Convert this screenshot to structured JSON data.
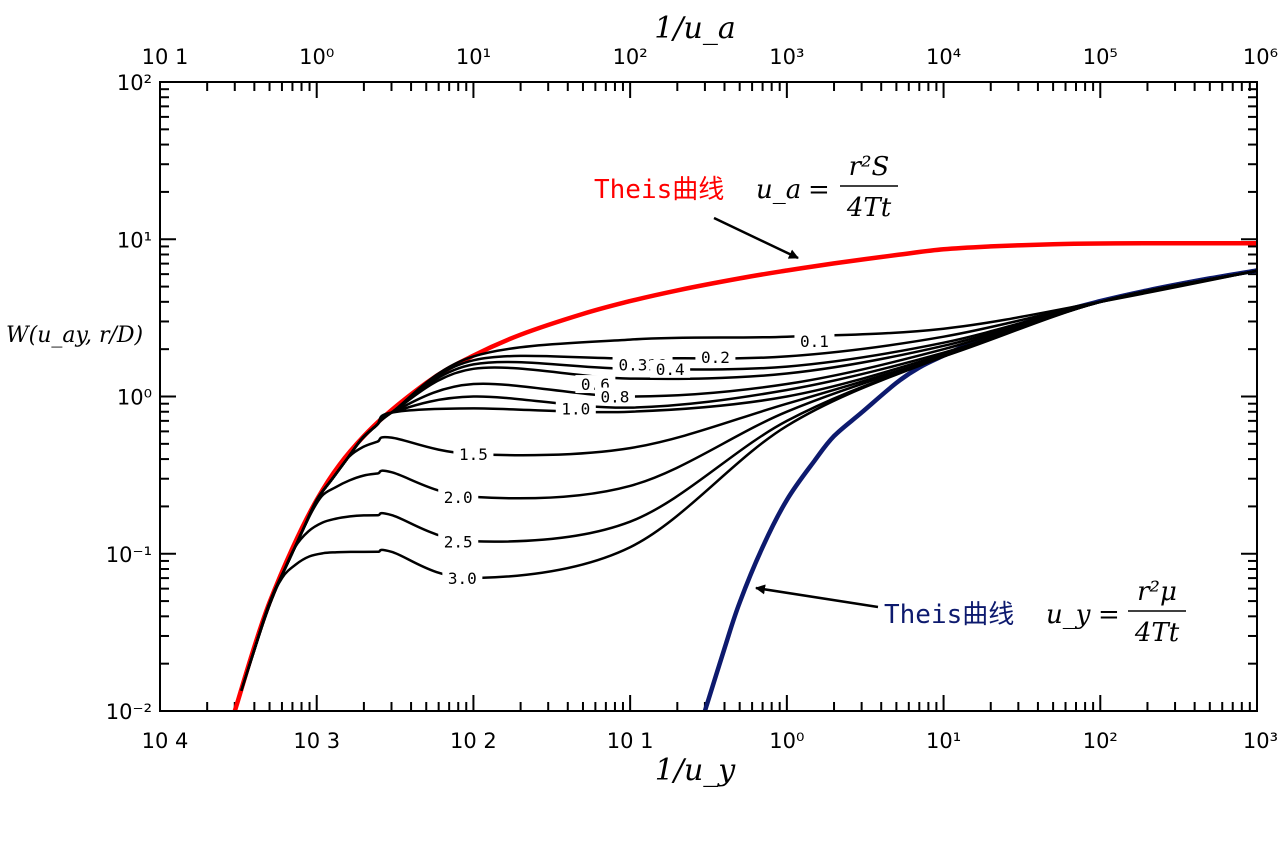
{
  "chart_data": {
    "type": "line",
    "log_x": true,
    "log_y": true,
    "grid": false,
    "title": "",
    "ylabel": "W(u_ay, r/D)",
    "bottom_axis": {
      "label": "1/u_y",
      "range": [
        0.0001,
        1000
      ],
      "tick_labels": [
        "10 4",
        "10 3",
        "10 2",
        "10 1",
        "10⁰",
        "10¹",
        "10²",
        "10³"
      ]
    },
    "top_axis": {
      "label": "1/u_a",
      "range": [
        0.1,
        1000000
      ],
      "tick_labels": [
        "10 1",
        "10⁰",
        "10¹",
        "10²",
        "10³",
        "10⁴",
        "10⁵",
        "10⁶"
      ]
    },
    "left_axis": {
      "range": [
        0.01,
        100
      ],
      "tick_labels": [
        "10⁻²",
        "10⁻¹",
        "10⁰",
        "10¹",
        "10²"
      ]
    },
    "series": [
      {
        "name": "Theis曲线 u_a = r²S/4Tt",
        "color": "#ff0000",
        "x": [
          0.0003,
          0.0005,
          0.001,
          0.002,
          0.005,
          0.01,
          0.02,
          0.05,
          0.1,
          0.2,
          0.5,
          1,
          2,
          5,
          10,
          20,
          50,
          100,
          200,
          500,
          1000
        ],
        "y": [
          0.01,
          0.049,
          0.22,
          0.56,
          1.22,
          1.82,
          2.47,
          3.35,
          4.04,
          4.73,
          5.64,
          6.33,
          7.02,
          7.94,
          8.63,
          9.0,
          9.3,
          9.4,
          9.42,
          9.42,
          9.42
        ]
      },
      {
        "name": "Theis曲线 u_y = r²μ/4Tt",
        "color": "#0d1a6e",
        "x": [
          0.3,
          0.4,
          0.5,
          0.7,
          1,
          1.5,
          2,
          3,
          5,
          7,
          10,
          20,
          50,
          100,
          200,
          500,
          1000
        ],
        "y": [
          0.01,
          0.025,
          0.049,
          0.11,
          0.22,
          0.39,
          0.56,
          0.79,
          1.22,
          1.53,
          1.82,
          2.47,
          3.35,
          4.04,
          4.73,
          5.64,
          6.33
        ]
      },
      {
        "name": "0.1",
        "color": "#000000",
        "x": [
          0.01,
          0.1,
          1,
          10,
          100,
          1000
        ],
        "y": [
          1.8,
          2.3,
          2.4,
          2.7,
          4.0,
          6.3
        ]
      },
      {
        "name": "0.2",
        "color": "#000000",
        "x": [
          0.01,
          0.1,
          1,
          10,
          100,
          1000
        ],
        "y": [
          1.7,
          1.75,
          1.8,
          2.4,
          4.0,
          6.3
        ]
      },
      {
        "name": "0.316",
        "color": "#000000",
        "x": [
          0.01,
          0.1,
          1,
          10,
          100,
          1000
        ],
        "y": [
          1.6,
          1.5,
          1.55,
          2.2,
          4.0,
          6.3
        ]
      },
      {
        "name": "0.4",
        "color": "#000000",
        "x": [
          0.01,
          0.1,
          1,
          10,
          100,
          1000
        ],
        "y": [
          1.5,
          1.3,
          1.4,
          2.1,
          4.0,
          6.3
        ]
      },
      {
        "name": "0.6",
        "color": "#000000",
        "x": [
          0.01,
          0.1,
          1,
          10,
          100,
          1000
        ],
        "y": [
          1.2,
          1.0,
          1.2,
          2.0,
          4.0,
          6.3
        ]
      },
      {
        "name": "0.8",
        "color": "#000000",
        "x": [
          0.01,
          0.1,
          1,
          10,
          100,
          1000
        ],
        "y": [
          1.0,
          0.85,
          1.1,
          1.9,
          4.0,
          6.3
        ]
      },
      {
        "name": "1.0",
        "color": "#000000",
        "x": [
          0.01,
          0.1,
          1,
          10,
          100,
          1000
        ],
        "y": [
          0.84,
          0.8,
          1.0,
          1.85,
          4.0,
          6.3
        ]
      },
      {
        "name": "1.5",
        "color": "#000000",
        "x": [
          0.01,
          0.1,
          1,
          10,
          100,
          1000
        ],
        "y": [
          0.43,
          0.47,
          0.9,
          1.8,
          4.0,
          6.3
        ]
      },
      {
        "name": "2.0",
        "color": "#000000",
        "x": [
          0.01,
          0.1,
          1,
          10,
          100,
          1000
        ],
        "y": [
          0.23,
          0.27,
          0.8,
          1.8,
          4.0,
          6.3
        ]
      },
      {
        "name": "2.5",
        "color": "#000000",
        "x": [
          0.01,
          0.1,
          1,
          10,
          100,
          1000
        ],
        "y": [
          0.12,
          0.16,
          0.7,
          1.8,
          4.0,
          6.3
        ]
      },
      {
        "name": "3.0",
        "color": "#000000",
        "x": [
          0.01,
          0.1,
          1,
          10,
          100,
          1000
        ],
        "y": [
          0.07,
          0.11,
          0.65,
          1.8,
          4.0,
          6.3
        ]
      }
    ],
    "annotations": [
      {
        "text": "Theis曲线",
        "formula_lhs": "u_a",
        "numerator": "r²S",
        "denominator": "4Tt",
        "color": "#ff0000"
      },
      {
        "text": "Theis曲线",
        "formula_lhs": "u_y",
        "numerator": "r²μ",
        "denominator": "4Tt",
        "color": "#0d1a6e"
      }
    ]
  }
}
